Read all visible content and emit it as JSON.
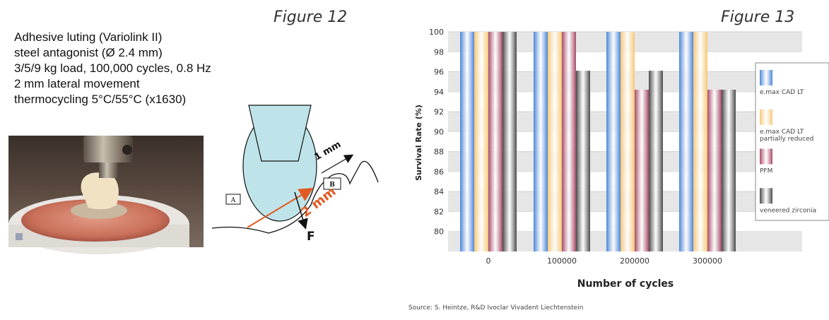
{
  "figure12": {
    "label": "Figure 12",
    "setup_lines": [
      "Adhesive luting (Variolink II)",
      "steel antagonist (Ø 2.4 mm)",
      "3/5/9 kg load, 100,000 cycles, 0.8 Hz",
      "2 mm lateral movement",
      "thermocycling 5°C/55°C (x1630)"
    ],
    "diagram": {
      "point_a": "A",
      "point_b": "B",
      "distance_1": "1 mm",
      "distance_2": "2 mm",
      "force": "F"
    }
  },
  "figure13": {
    "label": "Figure 13",
    "source_prefix": "Source:",
    "source_text": " S. Heintze, R&D Ivoclar Vivadent Liechtenstein"
  },
  "chart_data": {
    "type": "bar",
    "categories": [
      "0",
      "100000",
      "200000",
      "300000"
    ],
    "series": [
      {
        "name": "e.max CAD LT",
        "values": [
          100,
          100,
          100,
          100
        ],
        "color": "#4a86d8"
      },
      {
        "name": "e.max CAD LT partially reduced",
        "values": [
          100,
          100,
          100,
          100
        ],
        "color": "#f6c878"
      },
      {
        "name": "PFM",
        "values": [
          100,
          100,
          94.2,
          94.2
        ],
        "color": "#a84a66"
      },
      {
        "name": "veneered zirconia",
        "values": [
          100,
          96.1,
          96.1,
          94.2
        ],
        "color": "#4a4a4a"
      }
    ],
    "ylabel": "Survival Rate (%)",
    "xlabel": "Number of cycles",
    "ylim": [
      78,
      100
    ],
    "yticks": [
      80,
      82,
      84,
      86,
      88,
      90,
      92,
      94,
      96,
      98,
      100
    ],
    "legend": [
      {
        "lines": [
          "e.max CAD LT"
        ]
      },
      {
        "lines": [
          "e.max CAD LT",
          "partially reduced"
        ]
      },
      {
        "lines": [
          "PFM"
        ]
      },
      {
        "lines": [
          "veneered zirconia"
        ]
      }
    ],
    "legend_position": "right",
    "grid": true
  }
}
